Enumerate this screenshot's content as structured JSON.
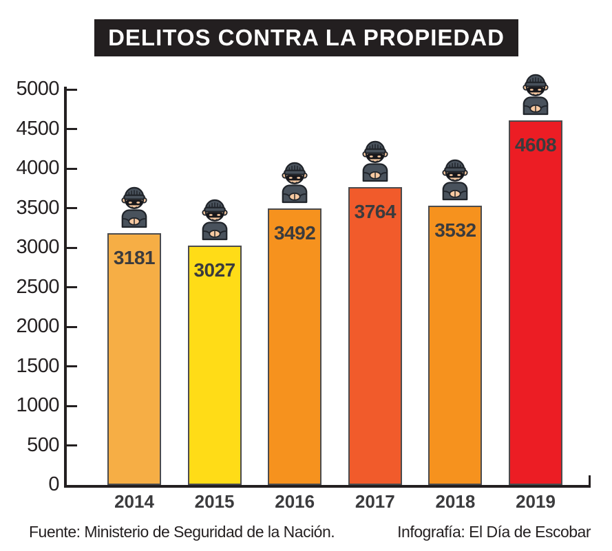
{
  "title": "DELITOS CONTRA LA PROPIEDAD",
  "footer": {
    "source": "Fuente: Ministerio de Seguridad de la Nación.",
    "credit": "Infografía: El Día de Escobar"
  },
  "icons": {
    "bar_icon": "burglar-icon"
  },
  "colors": {
    "banner_bg": "#231F20",
    "banner_text": "#FFFFFF",
    "axis": "#231F20",
    "value_label": "#3B3B3D",
    "thief_clothes": "#49525C",
    "thief_skin": "#F7C9A1",
    "thief_mask": "#17171B"
  },
  "chart_data": {
    "type": "bar",
    "title": "DELITOS CONTRA LA PROPIEDAD",
    "categories": [
      "2014",
      "2015",
      "2016",
      "2017",
      "2018",
      "2019"
    ],
    "values": [
      3181,
      3027,
      3492,
      3764,
      3532,
      4608
    ],
    "bar_colors": [
      "#F6AE45",
      "#FFDC17",
      "#F6921E",
      "#F15B2B",
      "#F6921E",
      "#EC1D24"
    ],
    "xlabel": "",
    "ylabel": "",
    "ylim": [
      0,
      5000
    ],
    "yticks": [
      0,
      500,
      1000,
      1500,
      2000,
      2500,
      3000,
      3500,
      4000,
      4500,
      5000
    ],
    "grid": false,
    "legend": false,
    "value_labels_inside_bars": true,
    "icon_above_each_bar": "burglar-icon"
  }
}
